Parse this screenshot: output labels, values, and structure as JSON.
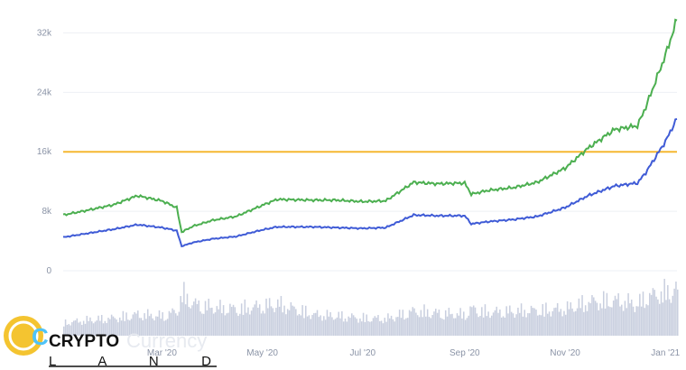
{
  "chart_data": {
    "type": "line",
    "title": "",
    "xlabel": "",
    "ylabel": "",
    "x": [
      "2020-01-01",
      "2020-01-15",
      "2020-02-01",
      "2020-02-15",
      "2020-03-01",
      "2020-03-10",
      "2020-03-13",
      "2020-03-20",
      "2020-04-01",
      "2020-04-15",
      "2020-05-01",
      "2020-05-10",
      "2020-06-01",
      "2020-06-15",
      "2020-07-01",
      "2020-07-15",
      "2020-08-01",
      "2020-08-15",
      "2020-09-01",
      "2020-09-05",
      "2020-09-15",
      "2020-10-01",
      "2020-10-15",
      "2020-11-01",
      "2020-11-15",
      "2020-12-01",
      "2020-12-15",
      "2020-12-20",
      "2021-01-01",
      "2021-01-08"
    ],
    "series": [
      {
        "values": [
          7500,
          8100,
          8900,
          10100,
          9400,
          8500,
          5200,
          6000,
          6800,
          7300,
          8800,
          9600,
          9500,
          9500,
          9300,
          9400,
          11900,
          11700,
          11800,
          10300,
          10800,
          11200,
          11900,
          13800,
          16500,
          19000,
          19500,
          22000,
          29000,
          33800
        ]
      },
      {
        "values": [
          4500,
          5000,
          5600,
          6200,
          5800,
          5400,
          3300,
          3800,
          4300,
          4600,
          5500,
          5900,
          5900,
          5800,
          5700,
          5800,
          7500,
          7400,
          7400,
          6300,
          6600,
          6900,
          7300,
          8500,
          10100,
          11400,
          11800,
          13200,
          17400,
          20500
        ]
      }
    ],
    "reference_line": 16000,
    "volume": [
      18,
      22,
      25,
      30,
      28,
      35,
      60,
      45,
      40,
      38,
      42,
      45,
      30,
      28,
      25,
      24,
      35,
      32,
      30,
      38,
      33,
      35,
      36,
      38,
      48,
      50,
      45,
      55,
      62,
      65
    ],
    "ylim": [
      0,
      34000
    ],
    "yticks": [
      "0",
      "8k",
      "16k",
      "24k",
      "32k"
    ],
    "yticks_values": [
      0,
      8000,
      16000,
      24000,
      32000
    ],
    "xticks": [
      "Mar '20",
      "May '20",
      "Jul '20",
      "Sep '20",
      "Nov '20",
      "Jan '21"
    ],
    "xticks_values": [
      "2020-03-01",
      "2020-05-01",
      "2020-07-01",
      "2020-09-01",
      "2020-11-01",
      "2021-01-01"
    ],
    "x_range": [
      "2020-01-01",
      "2021-01-08"
    ],
    "grid": true,
    "colors": {
      "series1": "#4caf50",
      "series2": "#3f5bd6",
      "reference": "#f5b731",
      "volume": "#c9cfdf",
      "grid": "#eef0f4"
    }
  },
  "watermark": "Currency",
  "logo": {
    "icon_letter": "C",
    "word": "CRYPTO",
    "subword": "L A N D"
  }
}
